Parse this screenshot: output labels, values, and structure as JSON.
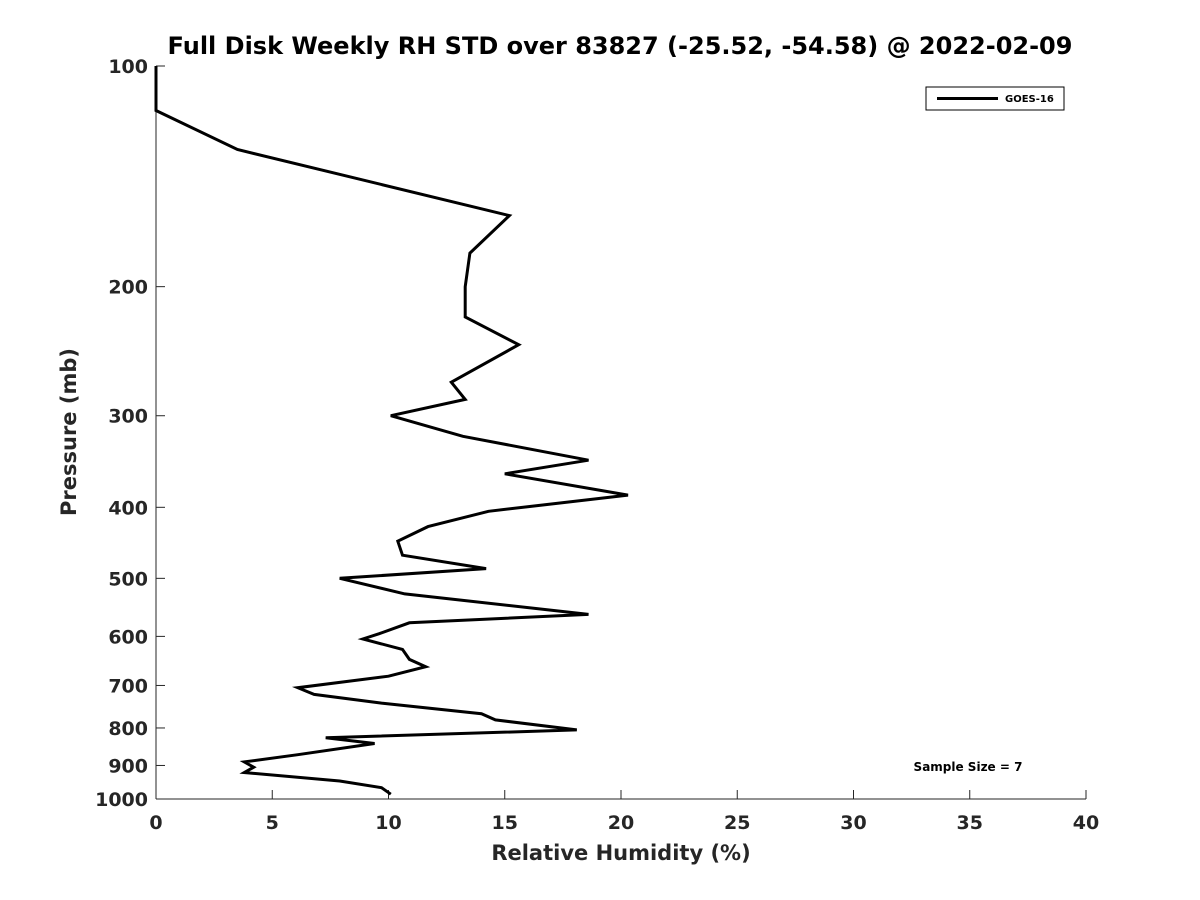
{
  "chart_data": {
    "type": "line",
    "title": "Full Disk Weekly RH STD over 83827 (-25.52, -54.58) @ 2022-02-09",
    "xlabel": "Relative Humidity (%)",
    "ylabel": "Pressure (mb)",
    "xlim": [
      0,
      40
    ],
    "ylim": [
      100,
      1000
    ],
    "yscale": "log",
    "yreversed": true,
    "grid": false,
    "legend_position": "top-right",
    "x_ticks": [
      0,
      5,
      10,
      15,
      20,
      25,
      30,
      35,
      40
    ],
    "x_tick_labels": [
      "0",
      "5",
      "10",
      "15",
      "20",
      "25",
      "30",
      "35",
      "40"
    ],
    "y_ticks": [
      100,
      200,
      300,
      400,
      500,
      600,
      700,
      800,
      900,
      1000
    ],
    "y_tick_labels": [
      "100",
      "200",
      "300",
      "400",
      "500",
      "600",
      "700",
      "800",
      "900",
      "1000"
    ],
    "series": [
      {
        "name": "GOES-16",
        "color": "#000000",
        "points": [
          [
            0.0,
            100
          ],
          [
            0.0,
            115
          ],
          [
            3.5,
            130
          ],
          [
            15.2,
            160
          ],
          [
            13.5,
            180
          ],
          [
            13.3,
            200
          ],
          [
            13.3,
            220
          ],
          [
            15.6,
            240
          ],
          [
            12.7,
            270
          ],
          [
            13.3,
            285
          ],
          [
            10.1,
            300
          ],
          [
            13.2,
            320
          ],
          [
            18.6,
            345
          ],
          [
            15.0,
            360
          ],
          [
            20.3,
            385
          ],
          [
            14.3,
            405
          ],
          [
            11.7,
            425
          ],
          [
            10.4,
            445
          ],
          [
            10.6,
            465
          ],
          [
            14.2,
            485
          ],
          [
            7.9,
            500
          ],
          [
            10.7,
            525
          ],
          [
            18.6,
            560
          ],
          [
            10.9,
            575
          ],
          [
            9.6,
            595
          ],
          [
            8.9,
            605
          ],
          [
            10.6,
            625
          ],
          [
            10.9,
            645
          ],
          [
            11.6,
            660
          ],
          [
            10.0,
            680
          ],
          [
            6.1,
            705
          ],
          [
            6.8,
            720
          ],
          [
            9.7,
            740
          ],
          [
            14.0,
            765
          ],
          [
            14.6,
            780
          ],
          [
            18.1,
            805
          ],
          [
            7.3,
            825
          ],
          [
            9.4,
            840
          ],
          [
            6.1,
            870
          ],
          [
            3.8,
            890
          ],
          [
            4.2,
            905
          ],
          [
            3.8,
            920
          ],
          [
            7.9,
            945
          ],
          [
            9.7,
            965
          ],
          [
            10.1,
            985
          ]
        ]
      }
    ],
    "annotations": [
      {
        "text": "Sample Size = 7",
        "position": "bottom-right"
      }
    ]
  }
}
